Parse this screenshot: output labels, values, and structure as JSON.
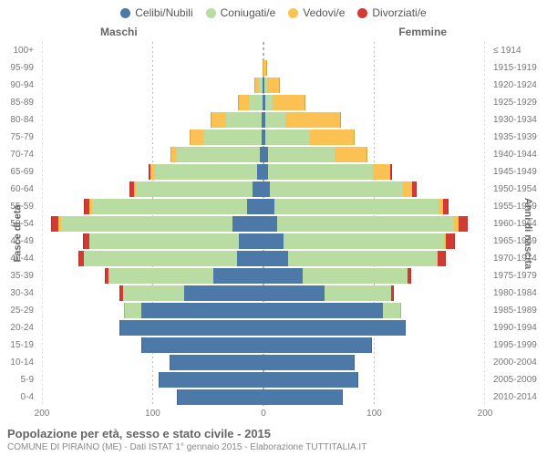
{
  "legend": {
    "items": [
      {
        "label": "Celibi/Nubili",
        "color": "#4d79a8"
      },
      {
        "label": "Coniugati/e",
        "color": "#b8dca1"
      },
      {
        "label": "Vedovi/e",
        "color": "#fbc152"
      },
      {
        "label": "Divorziati/e",
        "color": "#d23a33"
      }
    ]
  },
  "header": {
    "left": "Maschi",
    "right": "Femmine"
  },
  "axes": {
    "y_left_title": "Fasce di età",
    "y_right_title": "Anni di nascita",
    "x_ticks": [
      -200,
      -100,
      0,
      100,
      200
    ],
    "x_tick_labels": [
      "200",
      "100",
      "0",
      "100",
      "200"
    ],
    "x_max_abs": 200
  },
  "colors": {
    "celibi": "#4d79a8",
    "coniugati": "#b8dca1",
    "vedovi": "#fbc152",
    "divorziati": "#d23a33",
    "grid": "#bbbbbb",
    "center": "#999999",
    "bg": "#ffffff"
  },
  "age_bands": [
    {
      "age": "100+",
      "birth": "≤ 1914"
    },
    {
      "age": "95-99",
      "birth": "1915-1919"
    },
    {
      "age": "90-94",
      "birth": "1920-1924"
    },
    {
      "age": "85-89",
      "birth": "1925-1929"
    },
    {
      "age": "80-84",
      "birth": "1930-1934"
    },
    {
      "age": "75-79",
      "birth": "1935-1939"
    },
    {
      "age": "70-74",
      "birth": "1940-1944"
    },
    {
      "age": "65-69",
      "birth": "1945-1949"
    },
    {
      "age": "60-64",
      "birth": "1950-1954"
    },
    {
      "age": "55-59",
      "birth": "1955-1959"
    },
    {
      "age": "50-54",
      "birth": "1960-1964"
    },
    {
      "age": "45-49",
      "birth": "1965-1969"
    },
    {
      "age": "40-44",
      "birth": "1970-1974"
    },
    {
      "age": "35-39",
      "birth": "1975-1979"
    },
    {
      "age": "30-34",
      "birth": "1980-1984"
    },
    {
      "age": "25-29",
      "birth": "1985-1989"
    },
    {
      "age": "20-24",
      "birth": "1990-1994"
    },
    {
      "age": "15-19",
      "birth": "1995-1999"
    },
    {
      "age": "10-14",
      "birth": "2000-2004"
    },
    {
      "age": "5-9",
      "birth": "2005-2009"
    },
    {
      "age": "0-4",
      "birth": "2010-2014"
    }
  ],
  "data": {
    "comment": "values per band: [celibi, coniugati, vedovi, divorziati] — estimated from image",
    "male": [
      [
        0,
        0,
        0,
        0
      ],
      [
        0,
        0,
        1,
        0
      ],
      [
        1,
        3,
        4,
        0
      ],
      [
        1,
        12,
        10,
        0
      ],
      [
        2,
        32,
        14,
        0
      ],
      [
        2,
        52,
        13,
        0
      ],
      [
        3,
        75,
        6,
        0
      ],
      [
        6,
        92,
        4,
        2
      ],
      [
        10,
        105,
        2,
        4
      ],
      [
        15,
        140,
        2,
        5
      ],
      [
        28,
        155,
        2,
        7
      ],
      [
        22,
        135,
        0,
        6
      ],
      [
        24,
        138,
        0,
        5
      ],
      [
        45,
        95,
        0,
        3
      ],
      [
        72,
        55,
        0,
        3
      ],
      [
        110,
        16,
        0,
        0
      ],
      [
        130,
        0,
        0,
        0
      ],
      [
        110,
        0,
        0,
        0
      ],
      [
        85,
        0,
        0,
        0
      ],
      [
        95,
        0,
        0,
        0
      ],
      [
        78,
        0,
        0,
        0
      ]
    ],
    "female": [
      [
        0,
        0,
        0,
        0
      ],
      [
        0,
        0,
        3,
        0
      ],
      [
        1,
        2,
        12,
        0
      ],
      [
        2,
        6,
        30,
        0
      ],
      [
        2,
        18,
        50,
        0
      ],
      [
        2,
        40,
        40,
        0
      ],
      [
        4,
        60,
        30,
        0
      ],
      [
        4,
        95,
        15,
        2
      ],
      [
        6,
        120,
        8,
        4
      ],
      [
        10,
        148,
        4,
        5
      ],
      [
        12,
        160,
        4,
        8
      ],
      [
        18,
        145,
        2,
        8
      ],
      [
        22,
        135,
        0,
        8
      ],
      [
        35,
        95,
        0,
        3
      ],
      [
        55,
        60,
        0,
        3
      ],
      [
        108,
        16,
        0,
        0
      ],
      [
        128,
        0,
        0,
        0
      ],
      [
        98,
        0,
        0,
        0
      ],
      [
        82,
        0,
        0,
        0
      ],
      [
        86,
        0,
        0,
        0
      ],
      [
        72,
        0,
        0,
        0
      ]
    ]
  },
  "footer": {
    "title": "Popolazione per età, sesso e stato civile - 2015",
    "subtitle": "COMUNE DI PIRAINO (ME) - Dati ISTAT 1° gennaio 2015 - Elaborazione TUTTITALIA.IT"
  }
}
